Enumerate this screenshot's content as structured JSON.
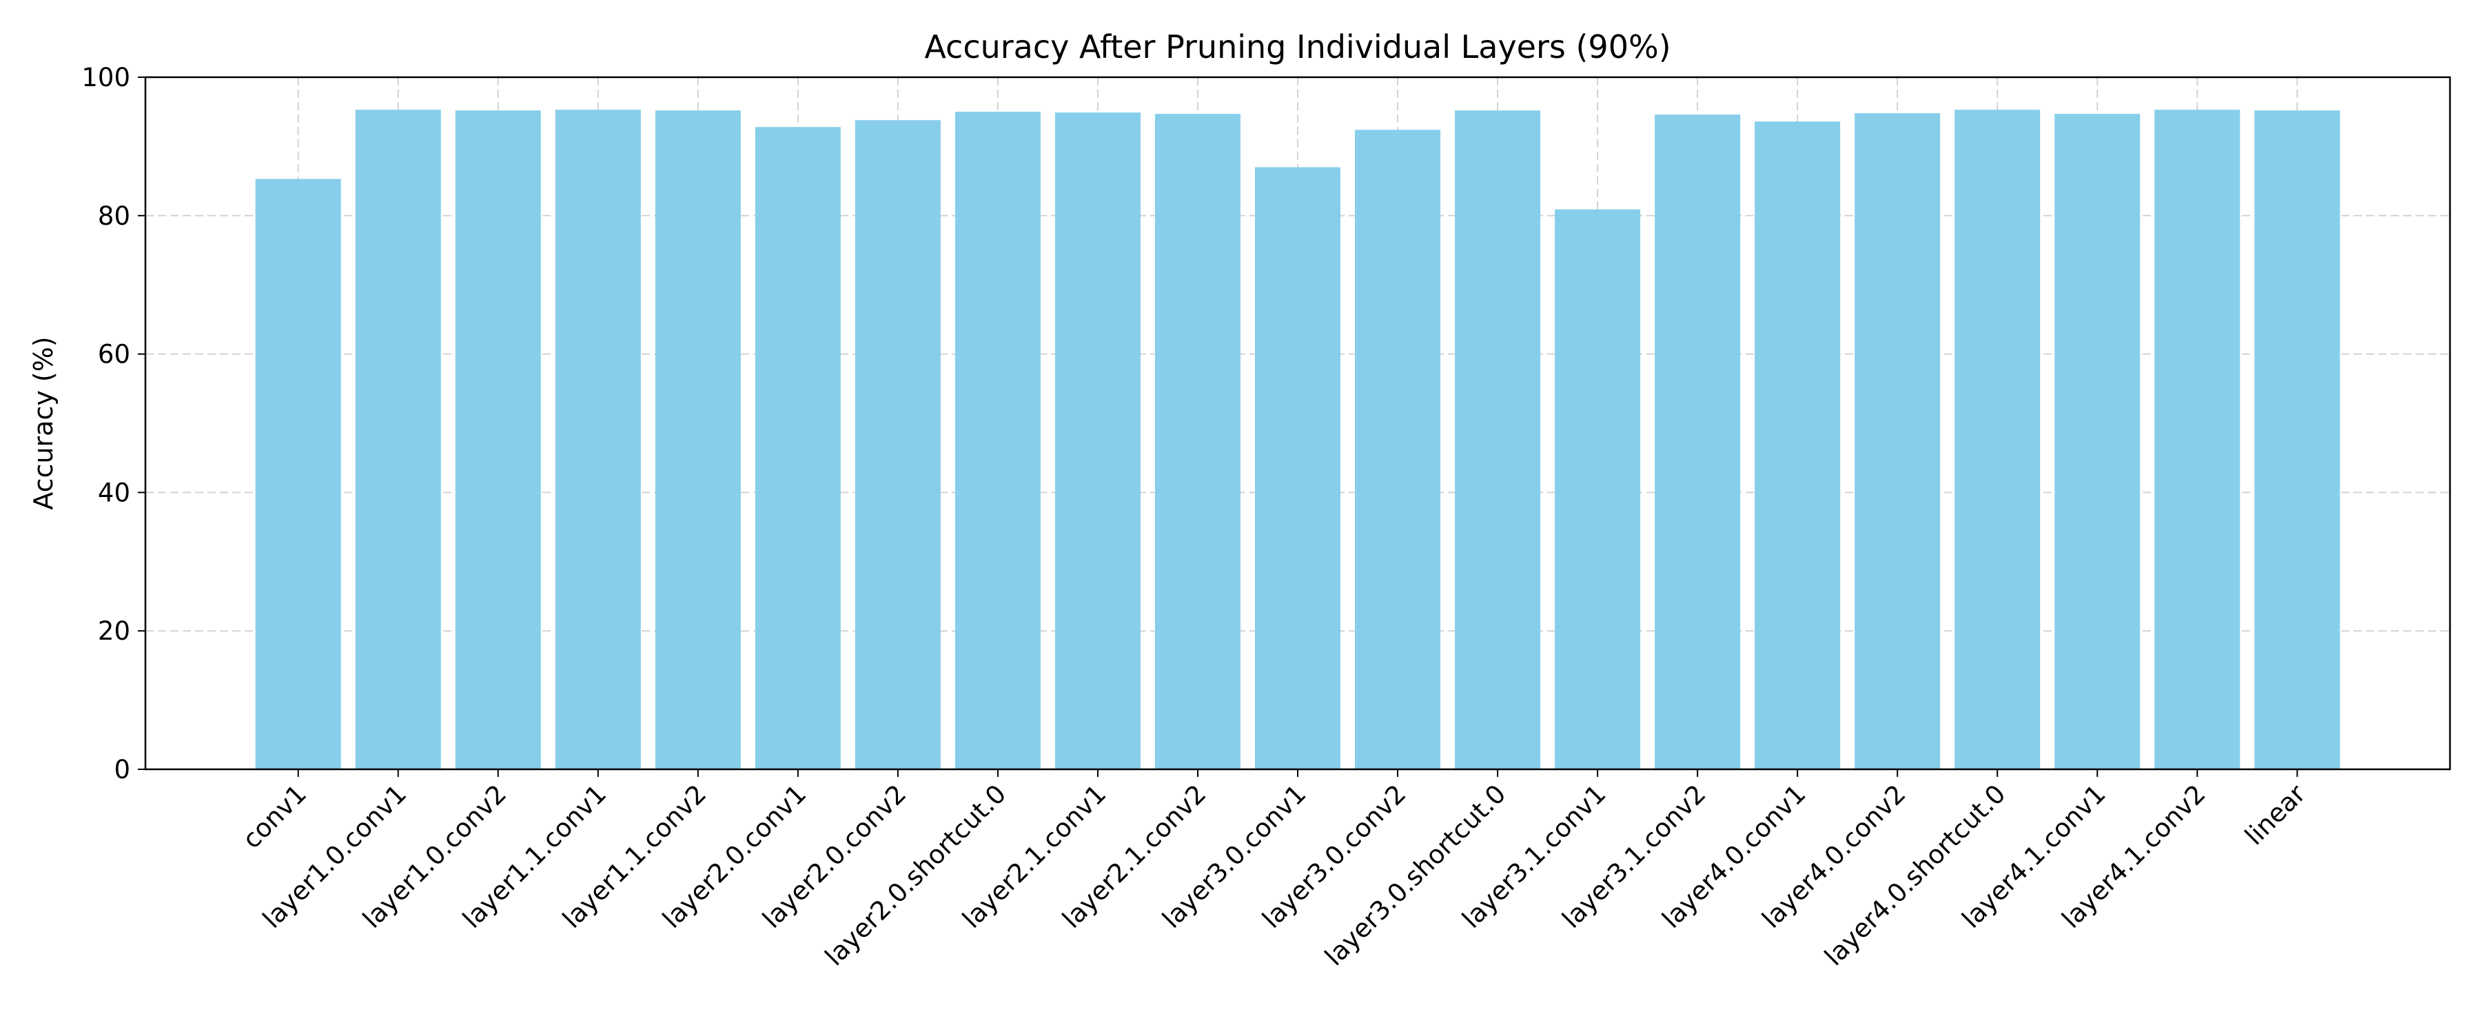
{
  "chart_data": {
    "type": "bar",
    "title": "Accuracy After Pruning Individual Layers (90%)",
    "xlabel": "",
    "ylabel": "Accuracy (%)",
    "ylim": [
      0,
      100
    ],
    "yticks": [
      0,
      20,
      40,
      60,
      80,
      100
    ],
    "grid": true,
    "bar_color": "#87ceeb",
    "categories": [
      "conv1",
      "layer1.0.conv1",
      "layer1.0.conv2",
      "layer1.1.conv1",
      "layer1.1.conv2",
      "layer2.0.conv1",
      "layer2.0.conv2",
      "layer2.0.shortcut.0",
      "layer2.1.conv1",
      "layer2.1.conv2",
      "layer3.0.conv1",
      "layer3.0.conv2",
      "layer3.0.shortcut.0",
      "layer3.1.conv1",
      "layer3.1.conv2",
      "layer4.0.conv1",
      "layer4.0.conv2",
      "layer4.0.shortcut.0",
      "layer4.1.conv1",
      "layer4.1.conv2",
      "linear"
    ],
    "values": [
      85.3,
      95.3,
      95.2,
      95.3,
      95.2,
      92.8,
      93.8,
      95.0,
      94.9,
      94.7,
      87.0,
      92.4,
      95.2,
      80.9,
      94.6,
      93.6,
      94.8,
      95.3,
      94.7,
      95.3,
      95.2
    ]
  }
}
